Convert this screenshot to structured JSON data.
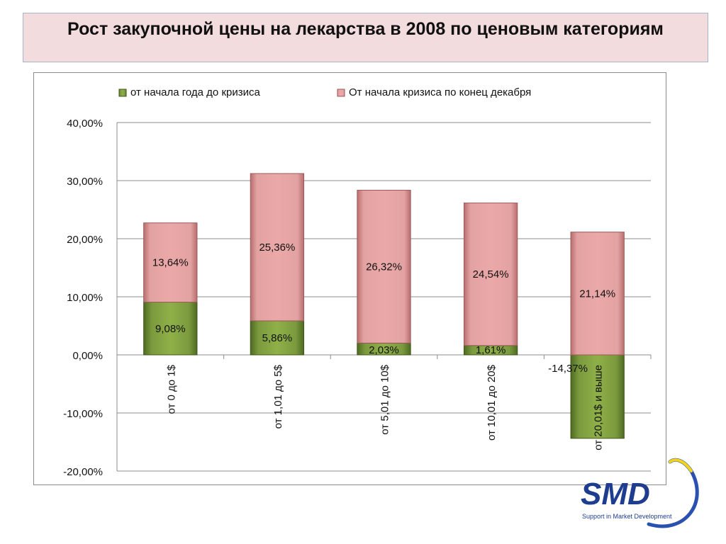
{
  "title": "Рост закупочной цены на лекарства в 2008 по ценовым категориям",
  "chart_data": {
    "type": "bar",
    "stacked": true,
    "categories": [
      "от 0 до 1$",
      "от 1,01 до 5$",
      "от 5,01 до 10$",
      "от 10,01 до 20$",
      "от 20,01$ и выше"
    ],
    "series": [
      {
        "name": "от начала года до кризиса",
        "values": [
          9.08,
          5.86,
          2.03,
          1.61,
          -14.37
        ],
        "labels": [
          "9,08%",
          "5,86%",
          "2,03%",
          "1,61%",
          "-14,37%"
        ],
        "color": "#77933c"
      },
      {
        "name": "От начала кризиса по конец декабря",
        "values": [
          13.64,
          25.36,
          26.32,
          24.54,
          21.14
        ],
        "labels": [
          "13,64%",
          "25,36%",
          "26,32%",
          "24,54%",
          "21,14%"
        ],
        "color": "#e6a0a0"
      }
    ],
    "ylim": [
      -20,
      40
    ],
    "yticks": [
      -20,
      -10,
      0,
      10,
      20,
      30,
      40
    ],
    "ytick_labels": [
      "-20,00%",
      "-10,00%",
      "0,00%",
      "10,00%",
      "20,00%",
      "30,00%",
      "40,00%"
    ],
    "grid": true,
    "legend_position": "top",
    "xlabel": "",
    "ylabel": ""
  },
  "logo": {
    "text": "SMD",
    "tagline": "Support in Market Development",
    "color": "#1f3d8f",
    "accent": "#f2d51a"
  }
}
